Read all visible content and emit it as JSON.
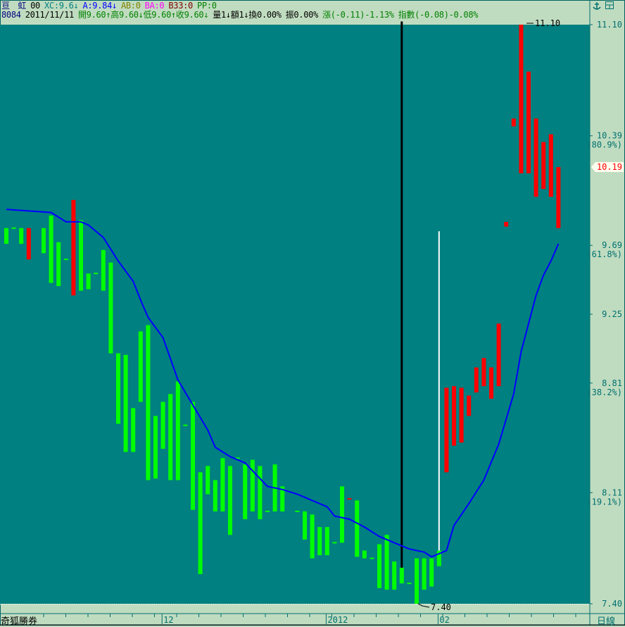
{
  "header": {
    "row1": [
      {
        "text": "亘　虹",
        "color": "#000080"
      },
      {
        "text": "00",
        "color": "#000000"
      },
      {
        "text": "XC:9.6↓",
        "color": "#008080"
      },
      {
        "text": "A:9.84↓",
        "color": "#0000ff"
      },
      {
        "text": "AB:0",
        "color": "#808000"
      },
      {
        "text": "BA:0",
        "color": "#ff00ff"
      },
      {
        "text": "B33:0",
        "color": "#800000"
      },
      {
        "text": "PP:0",
        "color": "#008000"
      }
    ],
    "row2": [
      {
        "text": "8084",
        "color": "#000080"
      },
      {
        "text": "2011/11/11",
        "color": "#000000"
      },
      {
        "text": "開9.60↑高9.60↓低9.60↑收9.60↓",
        "color": "#008000"
      },
      {
        "text": "量1↓額1↓換0.00%",
        "color": "#000000"
      },
      {
        "text": "振0.00%",
        "color": "#000000"
      },
      {
        "text": "漲(-0.11)-1.13%",
        "color": "#008000"
      },
      {
        "text": "指數(-0.08)-0.08%",
        "color": "#008000"
      }
    ],
    "icons": [
      "anchor-icon",
      "window-layout-icon"
    ]
  },
  "footer": {
    "broker": "奇狐勝券",
    "period": "日線"
  },
  "chart_data": {
    "type": "candlestick",
    "colors": {
      "background": "#008080",
      "up": "#ff0000",
      "down": "#00ff00",
      "ma": "#0000ff",
      "panel": "#c0dcc0"
    },
    "ylim": [
      7.4,
      11.1
    ],
    "price_ticks": [
      {
        "value": "11.10"
      },
      {
        "value": "10.39",
        "pct": "(80.9%)"
      },
      {
        "value": "9.69",
        "pct": "(61.8%)"
      },
      {
        "value": "9.25"
      },
      {
        "value": "8.81",
        "pct": "(38.2%)"
      },
      {
        "value": "8.11",
        "pct": "(19.1%)"
      },
      {
        "value": "7.40"
      }
    ],
    "current_price": "10.19",
    "high_label": "11.10",
    "low_label": "7.40",
    "x_labels": [
      {
        "bar": 23,
        "text": "12"
      },
      {
        "bar": 45,
        "text": "2012"
      },
      {
        "bar": 60,
        "text": "02"
      }
    ],
    "bars": [
      [
        1,
        9.8,
        9.7,
        "down"
      ],
      [
        2,
        9.8,
        9.8,
        "down"
      ],
      [
        3,
        9.8,
        9.7,
        "down"
      ],
      [
        4,
        9.8,
        9.6,
        "up"
      ],
      [
        6,
        9.8,
        9.64,
        "down"
      ],
      [
        7,
        9.88,
        9.45,
        "down"
      ],
      [
        8,
        9.71,
        9.43,
        "down"
      ],
      [
        9,
        9.6,
        9.6,
        "down"
      ],
      [
        10,
        9.98,
        9.37,
        "up"
      ],
      [
        11,
        9.85,
        9.4,
        "down"
      ],
      [
        12,
        9.51,
        9.41,
        "down"
      ],
      [
        13,
        9.51,
        9.51,
        "down"
      ],
      [
        14,
        9.66,
        9.4,
        "down"
      ],
      [
        15,
        9.58,
        9.0,
        "down"
      ],
      [
        16,
        9.0,
        8.55,
        "down"
      ],
      [
        17,
        8.99,
        8.37,
        "down"
      ],
      [
        18,
        8.65,
        8.37,
        "down"
      ],
      [
        19,
        9.14,
        8.69,
        "down"
      ],
      [
        20,
        9.18,
        8.19,
        "down"
      ],
      [
        21,
        8.6,
        8.2,
        "down"
      ],
      [
        22,
        8.69,
        8.39,
        "down"
      ],
      [
        23,
        8.74,
        8.19,
        "down"
      ],
      [
        24,
        8.82,
        8.19,
        "down"
      ],
      [
        25,
        8.54,
        8.54,
        "down"
      ],
      [
        26,
        8.69,
        8.0,
        "down"
      ],
      [
        27,
        8.24,
        7.59,
        "down"
      ],
      [
        28,
        8.28,
        8.1,
        "down"
      ],
      [
        29,
        8.19,
        7.99,
        "down"
      ],
      [
        30,
        8.33,
        7.99,
        "down"
      ],
      [
        31,
        8.28,
        7.84,
        "down"
      ],
      [
        32,
        8.33,
        8.33,
        "down"
      ],
      [
        33,
        8.29,
        7.94,
        "down"
      ],
      [
        34,
        8.32,
        7.99,
        "down"
      ],
      [
        35,
        8.28,
        7.94,
        "down"
      ],
      [
        36,
        7.99,
        7.99,
        "down"
      ],
      [
        37,
        8.29,
        7.99,
        "down"
      ],
      [
        38,
        8.15,
        7.99,
        "down"
      ],
      [
        40,
        7.99,
        7.99,
        "down"
      ],
      [
        41,
        7.99,
        7.81,
        "down"
      ],
      [
        42,
        7.97,
        7.69,
        "down"
      ],
      [
        43,
        7.89,
        7.71,
        "down"
      ],
      [
        44,
        7.89,
        7.71,
        "down"
      ],
      [
        45,
        7.79,
        7.79,
        "down"
      ],
      [
        46,
        8.15,
        7.79,
        "down"
      ],
      [
        47,
        8.07,
        8.07,
        "up"
      ],
      [
        48,
        8.06,
        7.7,
        "down"
      ],
      [
        49,
        7.74,
        7.69,
        "down"
      ],
      [
        50,
        7.69,
        7.69,
        "down"
      ],
      [
        51,
        7.78,
        7.5,
        "down"
      ],
      [
        52,
        7.84,
        7.49,
        "down"
      ],
      [
        53,
        7.67,
        7.49,
        "down"
      ],
      [
        54,
        7.63,
        7.53,
        "down"
      ],
      [
        55,
        7.53,
        7.53,
        "down"
      ],
      [
        56,
        7.69,
        7.4,
        "down"
      ],
      [
        57,
        7.69,
        7.49,
        "down"
      ],
      [
        58,
        7.69,
        7.51,
        "down"
      ],
      [
        59,
        7.74,
        7.64,
        "down"
      ],
      [
        60,
        8.78,
        8.24,
        "up"
      ],
      [
        61,
        8.79,
        8.41,
        "up"
      ],
      [
        62,
        8.78,
        8.43,
        "up"
      ],
      [
        63,
        8.73,
        8.6,
        "up"
      ],
      [
        64,
        8.91,
        8.75,
        "up"
      ],
      [
        65,
        8.97,
        8.79,
        "up"
      ],
      [
        66,
        8.91,
        8.71,
        "up"
      ],
      [
        67,
        9.19,
        8.79,
        "up"
      ],
      [
        68,
        9.84,
        9.81,
        "up"
      ],
      [
        69,
        10.5,
        10.45,
        "up"
      ],
      [
        70,
        11.1,
        10.15,
        "up"
      ],
      [
        71,
        10.8,
        10.15,
        "up"
      ],
      [
        72,
        10.5,
        10.0,
        "up"
      ],
      [
        73,
        10.35,
        10.05,
        "up"
      ],
      [
        74,
        10.4,
        10.0,
        "up"
      ],
      [
        75,
        10.19,
        9.8,
        "up"
      ]
    ],
    "ma": [
      [
        1,
        9.92
      ],
      [
        4,
        9.91
      ],
      [
        7,
        9.9
      ],
      [
        9,
        9.84
      ],
      [
        11,
        9.84
      ],
      [
        12,
        9.82
      ],
      [
        14,
        9.74
      ],
      [
        16,
        9.59
      ],
      [
        18,
        9.46
      ],
      [
        19,
        9.34
      ],
      [
        20,
        9.23
      ],
      [
        22,
        9.1
      ],
      [
        24,
        8.83
      ],
      [
        26,
        8.67
      ],
      [
        28,
        8.51
      ],
      [
        29,
        8.4
      ],
      [
        31,
        8.34
      ],
      [
        33,
        8.3
      ],
      [
        35,
        8.2
      ],
      [
        36,
        8.15
      ],
      [
        38,
        8.13
      ],
      [
        40,
        8.1
      ],
      [
        42,
        8.06
      ],
      [
        44,
        8.02
      ],
      [
        45,
        7.96
      ],
      [
        47,
        7.94
      ],
      [
        49,
        7.89
      ],
      [
        51,
        7.83
      ],
      [
        53,
        7.79
      ],
      [
        55,
        7.75
      ],
      [
        57,
        7.73
      ],
      [
        58,
        7.7
      ],
      [
        60,
        7.74
      ],
      [
        61,
        7.9
      ],
      [
        63,
        8.04
      ],
      [
        65,
        8.19
      ],
      [
        67,
        8.42
      ],
      [
        69,
        8.74
      ],
      [
        70,
        9.01
      ],
      [
        72,
        9.37
      ],
      [
        73,
        9.5
      ],
      [
        74,
        9.59
      ],
      [
        75,
        9.7
      ]
    ],
    "markers": [
      {
        "bar": 54,
        "from": 11.12,
        "to": 7.63,
        "color": "#000000"
      },
      {
        "bar": 59,
        "from": 9.78,
        "to": 7.74,
        "color": "#ffffff"
      }
    ]
  }
}
